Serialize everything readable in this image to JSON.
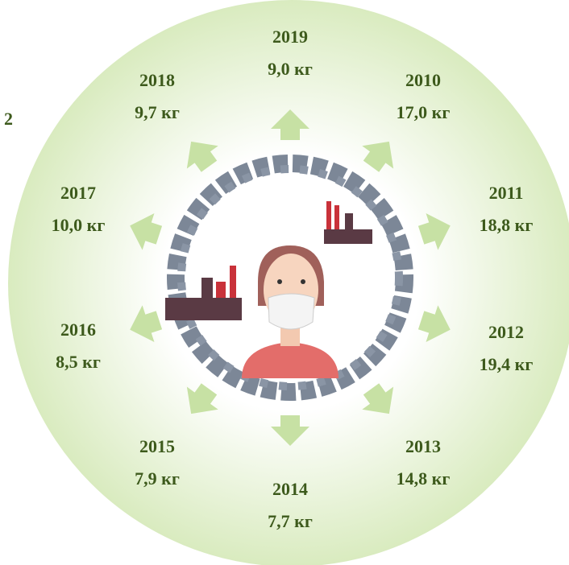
{
  "edge_fragment": "2",
  "items": [
    {
      "year": "2019",
      "label": "9,0 кг"
    },
    {
      "year": "2010",
      "label": "17,0 кг"
    },
    {
      "year": "2011",
      "label": "18,8 кг"
    },
    {
      "year": "2012",
      "label": "19,4 кг"
    },
    {
      "year": "2013",
      "label": "14,8 кг"
    },
    {
      "year": "2014",
      "label": "7,7 кг"
    },
    {
      "year": "2015",
      "label": "7,9 кг"
    },
    {
      "year": "2016",
      "label": "8,5 кг"
    },
    {
      "year": "2017",
      "label": "10,0 кг"
    },
    {
      "year": "2018",
      "label": "9,7 кг"
    }
  ]
}
